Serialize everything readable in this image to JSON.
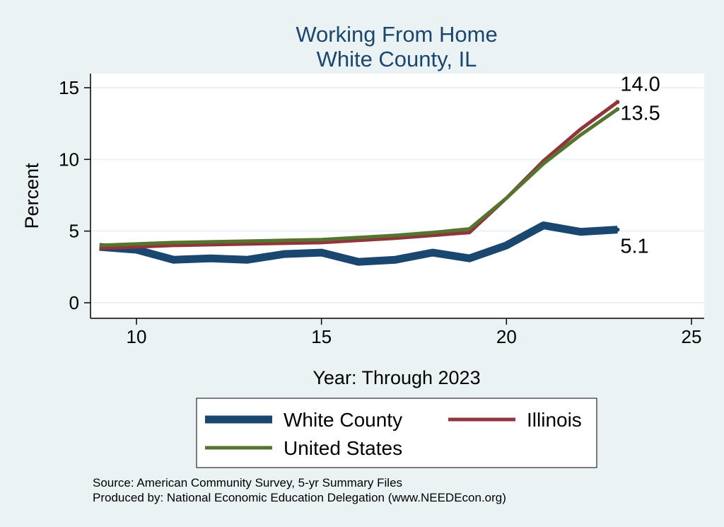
{
  "chart_data": {
    "type": "line",
    "title": "Working From Home",
    "subtitle": "White County, IL",
    "xlabel": "Year: Through 2023",
    "ylabel": "Percent",
    "xlim": [
      9,
      25
    ],
    "ylim": [
      0,
      15
    ],
    "x_ticks": [
      10,
      15,
      20,
      25
    ],
    "y_ticks": [
      0,
      5,
      10,
      15
    ],
    "grid": true,
    "legend_position": "bottom",
    "x": [
      9,
      10,
      11,
      12,
      13,
      14,
      15,
      16,
      17,
      18,
      19,
      20,
      21,
      22,
      23
    ],
    "series": [
      {
        "name": "White County",
        "color": "#1a476f",
        "values": [
          3.9,
          3.7,
          3.0,
          3.1,
          3.0,
          3.4,
          3.5,
          2.85,
          3.0,
          3.5,
          3.1,
          4.0,
          5.4,
          4.95,
          5.1
        ],
        "end_label": "5.1"
      },
      {
        "name": "Illinois",
        "color": "#90353b",
        "values": [
          3.8,
          3.9,
          4.0,
          4.05,
          4.1,
          4.15,
          4.2,
          4.35,
          4.5,
          4.7,
          4.9,
          7.3,
          9.9,
          12.1,
          14.0
        ],
        "end_label": "14.0"
      },
      {
        "name": "United States",
        "color": "#55752f",
        "values": [
          4.0,
          4.1,
          4.2,
          4.25,
          4.3,
          4.35,
          4.4,
          4.55,
          4.7,
          4.9,
          5.15,
          7.3,
          9.7,
          11.7,
          13.5
        ],
        "end_label": "13.5"
      }
    ],
    "notes": [
      "Source: American Community Survey, 5-yr Summary Files",
      "Produced by: National Economic Education Delegation (www.NEEDEcon.org)"
    ]
  }
}
